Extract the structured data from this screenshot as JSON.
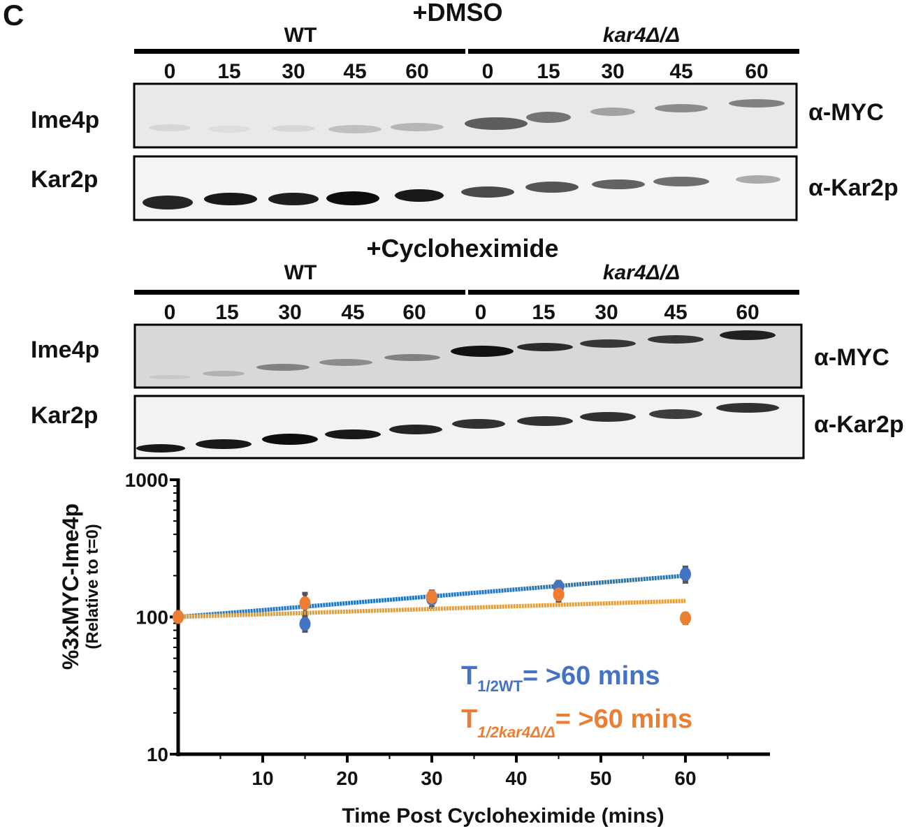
{
  "panel_label": "C",
  "blots": [
    {
      "treatment": "+DMSO",
      "groups": [
        "WT",
        "kar4Δ/Δ"
      ],
      "lanes": [
        "0",
        "15",
        "30",
        "45",
        "60",
        "0",
        "15",
        "30",
        "45",
        "60"
      ],
      "rows": [
        {
          "protein": "Ime4p",
          "antibody": "α-MYC"
        },
        {
          "protein": "Kar2p",
          "antibody": "α-Kar2p"
        }
      ]
    },
    {
      "treatment": "+Cycloheximide",
      "groups": [
        "WT",
        "kar4Δ/Δ"
      ],
      "lanes": [
        "0",
        "15",
        "30",
        "45",
        "60",
        "0",
        "15",
        "30",
        "45",
        "60"
      ],
      "rows": [
        {
          "protein": "Ime4p",
          "antibody": "α-MYC"
        },
        {
          "protein": "Kar2p",
          "antibody": "α-Kar2p"
        }
      ]
    }
  ],
  "chart_data": {
    "type": "scatter",
    "xlabel": "Time Post Cycloheximide (mins)",
    "ylabel": "%3xMYC-Ime4p",
    "ylabel_sub": "(Relative to t=0)",
    "yscale": "log",
    "ylim": [
      10,
      1000
    ],
    "yticks": [
      "10",
      "100",
      "1000"
    ],
    "xlim": [
      0,
      70
    ],
    "xticks": [
      "10",
      "20",
      "30",
      "40",
      "50",
      "60"
    ],
    "grid": false,
    "series": [
      {
        "color": "#4472c4",
        "fit_color": "#1f77c0",
        "x": [
          0,
          15,
          30,
          45,
          60
        ],
        "y": [
          100,
          89,
          136,
          166,
          205
        ],
        "err": [
          3,
          10,
          18,
          15,
          25
        ],
        "fit": [
          100,
          200
        ]
      },
      {
        "color": "#ed7d31",
        "fit_color": "#f39c1f",
        "x": [
          0,
          15,
          30,
          45,
          60
        ],
        "y": [
          100,
          126,
          140,
          146,
          98
        ],
        "err": [
          3,
          22,
          12,
          15,
          8
        ],
        "fit": [
          100,
          131
        ]
      }
    ],
    "annotations": [
      {
        "main": "T",
        "sub": "1/2WT",
        "text": "= >60 mins",
        "color": "#4472c4"
      },
      {
        "main": "T",
        "sub": "1/2kar4Δ/Δ",
        "text": "= >60 mins",
        "color": "#ed7d31"
      }
    ]
  }
}
